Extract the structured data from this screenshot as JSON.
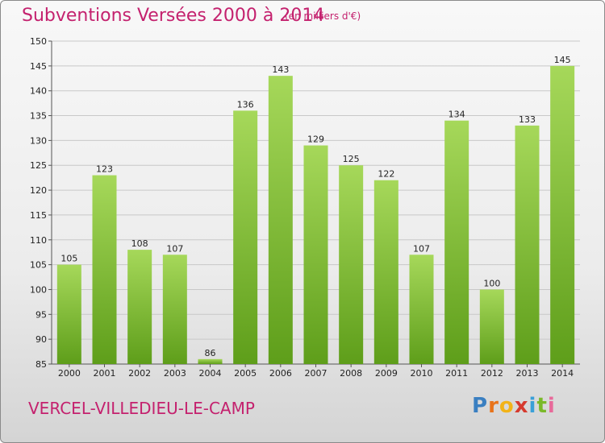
{
  "header": {
    "title": "Subventions Versées 2000 à 2014",
    "unit": "(en milliers d'€)"
  },
  "footer": {
    "commune": "VERCEL-VILLEDIEU-LE-CAMP",
    "logo_letters": [
      "P",
      "r",
      "o",
      "x",
      "i",
      "t",
      "i"
    ],
    "logo_colors": [
      "#3a7fc1",
      "#e8731a",
      "#f2b318",
      "#d63a2e",
      "#3aa0d8",
      "#7ab929",
      "#e86a9a"
    ]
  },
  "colors": {
    "title": "#c4216e",
    "bar_light": "#a6d85a",
    "bar_dark": "#5e9e1a",
    "grid": "#c8c8c8"
  },
  "chart_data": {
    "type": "bar",
    "categories": [
      "2000",
      "2001",
      "2002",
      "2003",
      "2004",
      "2005",
      "2006",
      "2007",
      "2008",
      "2009",
      "2010",
      "2011",
      "2012",
      "2013",
      "2014"
    ],
    "values": [
      105,
      123,
      108,
      107,
      86,
      136,
      143,
      129,
      125,
      122,
      107,
      134,
      100,
      133,
      145
    ],
    "ylim": [
      85,
      150
    ],
    "yticks": [
      85,
      90,
      95,
      100,
      105,
      110,
      115,
      120,
      125,
      130,
      135,
      140,
      145,
      150
    ],
    "grid": true,
    "data_labels": true
  }
}
